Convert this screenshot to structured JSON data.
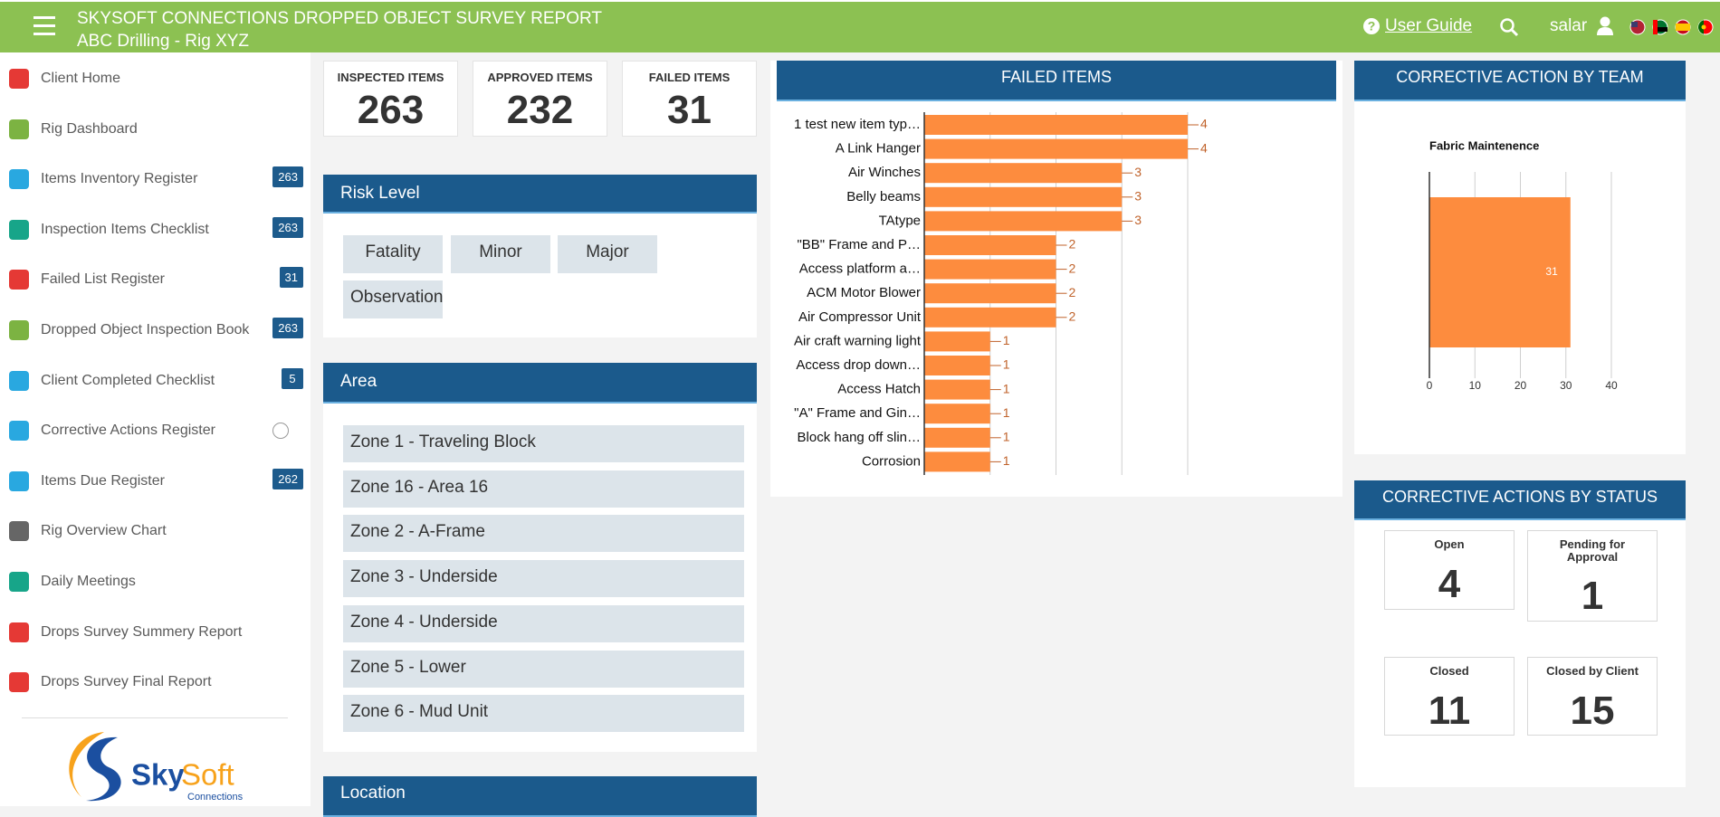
{
  "header": {
    "title": "SKYSOFT CONNECTIONS DROPPED OBJECT SURVEY REPORT",
    "subtitle": "ABC Drilling - Rig XYZ",
    "user_guide": "User Guide",
    "user": "salar"
  },
  "sidebar": {
    "items": [
      {
        "label": "Client Home",
        "color": "#e53935"
      },
      {
        "label": "Rig Dashboard",
        "color": "#7cb342"
      },
      {
        "label": "Items Inventory Register",
        "color": "#29a8e0",
        "badge": 263
      },
      {
        "label": "Inspection Items Checklist",
        "color": "#17a589",
        "badge": 263
      },
      {
        "label": "Failed List Register",
        "color": "#e53935",
        "badge": 31
      },
      {
        "label": "Dropped Object Inspection Book",
        "color": "#7cb342",
        "badge": 263
      },
      {
        "label": "Client Completed Checklist",
        "color": "#29a8e0",
        "badge": 5
      },
      {
        "label": "Corrective Actions Register",
        "color": "#29a8e0"
      },
      {
        "label": "Items Due Register",
        "color": "#29a8e0",
        "badge": 262
      },
      {
        "label": "Rig Overview Chart",
        "color": "#666666"
      },
      {
        "label": "Daily Meetings",
        "color": "#17a589"
      },
      {
        "label": "Drops Survey Summery Report",
        "color": "#e53935"
      },
      {
        "label": "Drops Survey Final Report",
        "color": "#e53935"
      }
    ]
  },
  "logo": {
    "name_a": "Sky",
    "name_b": "Soft",
    "tagline": "Connections"
  },
  "stats": [
    {
      "label": "INSPECTED ITEMS",
      "value": 263
    },
    {
      "label": "APPROVED ITEMS",
      "value": 232
    },
    {
      "label": "FAILED ITEMS",
      "value": 31
    }
  ],
  "risk_level": {
    "title": "Risk Level",
    "items": [
      "Fatality",
      "Minor",
      "Major",
      "Observation"
    ]
  },
  "area": {
    "title": "Area",
    "items": [
      "Zone 1 - Traveling Block",
      "Zone 16 - Area 16",
      "Zone 2 - A-Frame",
      "Zone 3 - Underside",
      "Zone 4 - Underside",
      "Zone 5 - Lower",
      "Zone 6 - Mud Unit"
    ]
  },
  "location": {
    "title": "Location"
  },
  "failed_items": {
    "title": "FAILED ITEMS",
    "chart_data": {
      "type": "bar",
      "horizontal": true,
      "categories": [
        "1 test new item typ…",
        "A Link Hanger",
        "Air Winches",
        "Belly beams",
        "TAtype",
        "\"BB\" Frame and P…",
        "Access platform a…",
        "ACM Motor Blower",
        "Air Compressor Unit",
        "Air craft warning light",
        "Access drop down…",
        "Access Hatch",
        "\"A\" Frame and Gin…",
        "Block hang off slin…",
        "Corrosion"
      ],
      "values": [
        4,
        4,
        3,
        3,
        3,
        2,
        2,
        2,
        2,
        1,
        1,
        1,
        1,
        1,
        1
      ],
      "color": "#fd8c3e",
      "xlim": [
        0,
        4
      ],
      "xticks": [
        0,
        1,
        2,
        3,
        4
      ],
      "grid": true
    }
  },
  "team": {
    "title": "CORRECTIVE ACTION BY TEAM",
    "chart_data": {
      "type": "bar",
      "horizontal": true,
      "categories": [
        "Fabric Maintenence"
      ],
      "values": [
        31
      ],
      "color": "#fd8c3e",
      "xlim": [
        0,
        40
      ],
      "xticks": [
        0,
        10,
        20,
        30,
        40
      ],
      "grid": true
    }
  },
  "status": {
    "title": "CORRECTIVE ACTIONS BY STATUS",
    "items": [
      {
        "label": "Open",
        "value": 4
      },
      {
        "label": "Pending for Approval",
        "value": 1
      },
      {
        "label": "Closed",
        "value": 11
      },
      {
        "label": "Closed by Client",
        "value": 15
      }
    ]
  }
}
